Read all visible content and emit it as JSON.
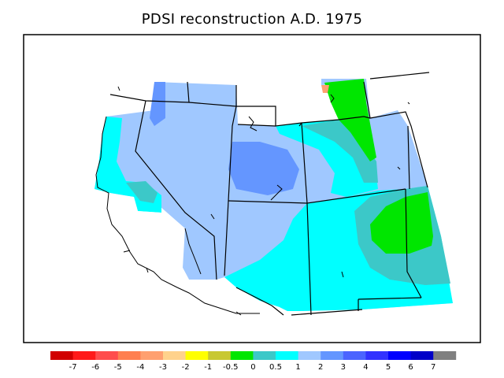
{
  "title": "PDSI reconstruction A.D. 1975",
  "legend": {
    "colors": [
      "#d10000",
      "#ff1a1a",
      "#ff4d4d",
      "#ff7f50",
      "#ffa070",
      "#ffd28c",
      "#ffff00",
      "#c8c832",
      "#00e600",
      "#3cc8c8",
      "#00ffff",
      "#a0c8ff",
      "#6496ff",
      "#4b64ff",
      "#3232ff",
      "#0000ff",
      "#0000c8",
      "#808080"
    ],
    "tick_labels": [
      "-7",
      "-6",
      "-5",
      "-4",
      "-3",
      "-2",
      "-1",
      "-0.5",
      "0",
      "0.5",
      "1",
      "2",
      "3",
      "4",
      "5",
      "6",
      "7"
    ]
  },
  "palette": {
    "light_blue": "#a0c8ff",
    "mid_blue": "#6496ff",
    "cyan": "#00ffff",
    "teal": "#3cc8c8",
    "green": "#00e600",
    "orange": "#ffa070"
  }
}
